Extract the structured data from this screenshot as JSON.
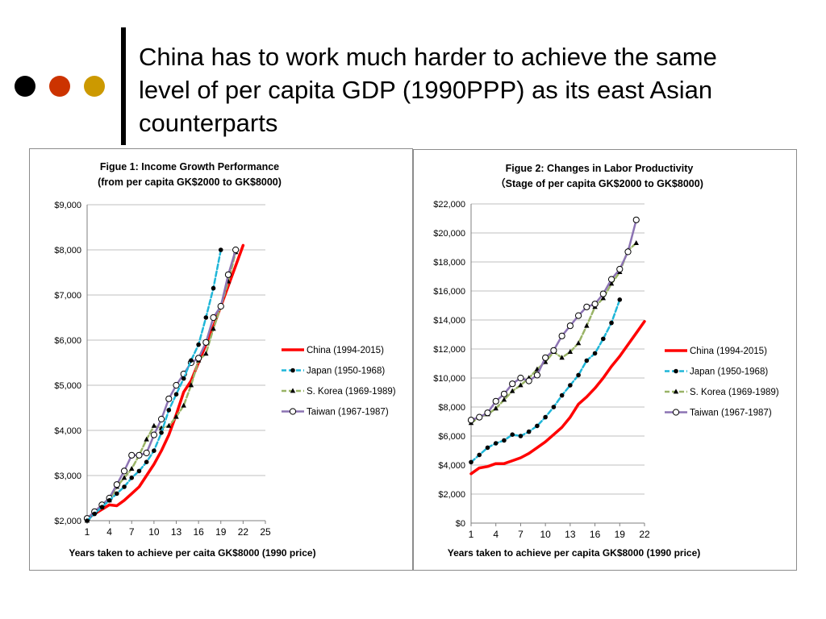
{
  "slide": {
    "title": "China has to work much harder to achieve the same level of per capita GDP (1990PPP) as its east Asian counterparts",
    "bullet_dots": [
      {
        "name": "black-dot",
        "color": "#000000"
      },
      {
        "name": "red-dot",
        "color": "#cc3300"
      },
      {
        "name": "gold-dot",
        "color": "#cc9900"
      }
    ]
  },
  "chart_data": [
    {
      "type": "line",
      "title": "Figue 1: Income Growth Performance",
      "subtitle": "(from per capita GK$2000 to GK$8000)",
      "xlabel": "Years taken to achieve per caita GK$8000 (1990 price)",
      "ylabel": "",
      "xlim": [
        1,
        25
      ],
      "ylim": [
        2000,
        9000
      ],
      "xticks": [
        1,
        4,
        7,
        10,
        13,
        16,
        19,
        22,
        25
      ],
      "yticks": [
        2000,
        3000,
        4000,
        5000,
        6000,
        7000,
        8000,
        9000
      ],
      "ytick_labels": [
        "$2,000",
        "$3,000",
        "$4,000",
        "$5,000",
        "$6,000",
        "$7,000",
        "$8,000",
        "$9,000"
      ],
      "grid": "horizontal",
      "legend_position": "right",
      "series": [
        {
          "name": "China (1994-2015)",
          "color": "#ff0000",
          "marker": "none",
          "dash": "solid",
          "width": 3.5,
          "x": [
            1,
            2,
            3,
            4,
            5,
            6,
            7,
            8,
            9,
            10,
            11,
            12,
            13,
            14,
            15,
            16,
            17,
            18,
            19,
            20,
            21,
            22
          ],
          "y": [
            2050,
            2150,
            2250,
            2350,
            2330,
            2450,
            2600,
            2750,
            3000,
            3250,
            3550,
            3900,
            4350,
            4850,
            5100,
            5500,
            5900,
            6300,
            6750,
            7200,
            7650,
            8100
          ]
        },
        {
          "name": "Japan (1950-1968)",
          "color": "#1fb6d8",
          "marker": "filled-circle",
          "dash": "dash",
          "width": 2.5,
          "x": [
            1,
            2,
            3,
            4,
            5,
            6,
            7,
            8,
            9,
            10,
            11,
            12,
            13,
            14,
            15,
            16,
            17,
            18,
            19
          ],
          "y": [
            2000,
            2150,
            2300,
            2450,
            2600,
            2750,
            2950,
            3100,
            3300,
            3550,
            3950,
            4450,
            4800,
            5150,
            5550,
            5900,
            6500,
            7150,
            8000
          ]
        },
        {
          "name": "S. Korea (1969-1989)",
          "color": "#99b366",
          "marker": "triangle",
          "dash": "dash",
          "width": 2.5,
          "x": [
            1,
            2,
            3,
            4,
            5,
            6,
            7,
            8,
            9,
            10,
            11,
            12,
            13,
            14,
            15,
            16,
            17,
            18,
            19,
            20,
            21
          ],
          "y": [
            2000,
            2200,
            2300,
            2450,
            2750,
            2950,
            3150,
            3450,
            3800,
            4100,
            4050,
            4100,
            4300,
            4550,
            5000,
            5550,
            5700,
            6250,
            6750,
            7300,
            7950
          ]
        },
        {
          "name": "Taiwan (1967-1987)",
          "color": "#8c73b3",
          "marker": "open-circle",
          "dash": "solid",
          "width": 2.5,
          "x": [
            1,
            2,
            3,
            4,
            5,
            6,
            7,
            8,
            9,
            10,
            11,
            12,
            13,
            14,
            15,
            16,
            17,
            18,
            19,
            20,
            21
          ],
          "y": [
            2050,
            2200,
            2350,
            2500,
            2800,
            3100,
            3450,
            3450,
            3500,
            3900,
            4250,
            4700,
            5000,
            5250,
            5500,
            5600,
            5950,
            6500,
            6750,
            7450,
            8000
          ]
        }
      ]
    },
    {
      "type": "line",
      "title": "Figue 2: Changes in Labor Productivity",
      "subtitle": "（Stage of per capita GK$2000 to GK$8000)",
      "xlabel": "Years taken to achieve per capita GK$8000 (1990  price)",
      "ylabel": "",
      "xlim": [
        1,
        22
      ],
      "ylim": [
        0,
        22000
      ],
      "xticks": [
        1,
        4,
        7,
        10,
        13,
        16,
        19,
        22
      ],
      "yticks": [
        0,
        2000,
        4000,
        6000,
        8000,
        10000,
        12000,
        14000,
        16000,
        18000,
        20000,
        22000
      ],
      "ytick_labels": [
        "$0",
        "$2,000",
        "$4,000",
        "$6,000",
        "$8,000",
        "$10,000",
        "$12,000",
        "$14,000",
        "$16,000",
        "$18,000",
        "$20,000",
        "$22,000"
      ],
      "grid": "horizontal",
      "legend_position": "right",
      "series": [
        {
          "name": "China (1994-2015)",
          "color": "#ff0000",
          "marker": "none",
          "dash": "solid",
          "width": 3.5,
          "x": [
            1,
            2,
            3,
            4,
            5,
            6,
            7,
            8,
            9,
            10,
            11,
            12,
            13,
            14,
            15,
            16,
            17,
            18,
            19,
            20,
            21,
            22
          ],
          "y": [
            3400,
            3800,
            3900,
            4100,
            4100,
            4300,
            4500,
            4800,
            5200,
            5600,
            6100,
            6600,
            7300,
            8200,
            8700,
            9300,
            10000,
            10800,
            11500,
            12300,
            13100,
            13900
          ]
        },
        {
          "name": "Japan (1950-1968)",
          "color": "#1fb6d8",
          "marker": "filled-circle",
          "dash": "dash",
          "width": 2.5,
          "x": [
            1,
            2,
            3,
            4,
            5,
            6,
            7,
            8,
            9,
            10,
            11,
            12,
            13,
            14,
            15,
            16,
            17,
            18,
            19
          ],
          "y": [
            4200,
            4700,
            5200,
            5500,
            5700,
            6100,
            6000,
            6300,
            6700,
            7300,
            8000,
            8800,
            9500,
            10200,
            11200,
            11700,
            12700,
            13800,
            15400
          ]
        },
        {
          "name": "S. Korea (1969-1989)",
          "color": "#99b366",
          "marker": "triangle",
          "dash": "dash",
          "width": 2.5,
          "x": [
            1,
            2,
            3,
            4,
            5,
            6,
            7,
            8,
            9,
            10,
            11,
            12,
            13,
            14,
            15,
            16,
            17,
            18,
            19,
            20,
            21
          ],
          "y": [
            6900,
            7300,
            7500,
            7900,
            8500,
            9100,
            9500,
            10000,
            10600,
            11100,
            11800,
            11400,
            11800,
            12400,
            13600,
            14900,
            15500,
            16500,
            17300,
            18800,
            19300
          ]
        },
        {
          "name": "Taiwan (1967-1987)",
          "color": "#8c73b3",
          "marker": "open-circle",
          "dash": "solid",
          "width": 2.5,
          "x": [
            1,
            2,
            3,
            4,
            5,
            6,
            7,
            8,
            9,
            10,
            11,
            12,
            13,
            14,
            15,
            16,
            17,
            18,
            19,
            20,
            21
          ],
          "y": [
            7100,
            7300,
            7600,
            8400,
            8900,
            9600,
            10000,
            9800,
            10200,
            11400,
            11900,
            12900,
            13600,
            14300,
            14900,
            15100,
            15800,
            16800,
            17500,
            18700,
            20900
          ]
        }
      ]
    }
  ]
}
